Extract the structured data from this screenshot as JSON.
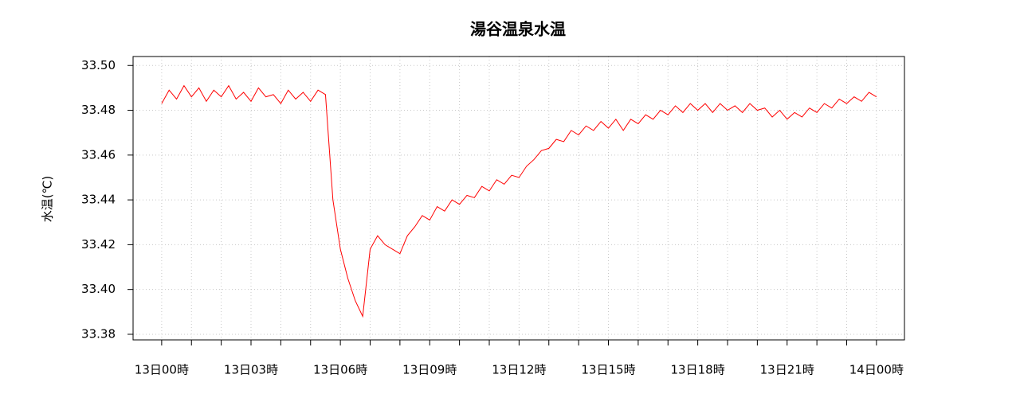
{
  "chart_data": {
    "type": "line",
    "title": "湯谷温泉水温",
    "y_label": "水温(℃)",
    "x": [
      0,
      0.25,
      0.5,
      0.75,
      1,
      1.25,
      1.5,
      1.75,
      2,
      2.25,
      2.5,
      2.75,
      3,
      3.25,
      3.5,
      3.75,
      4,
      4.25,
      4.5,
      4.75,
      5,
      5.25,
      5.5,
      5.75,
      6,
      6.25,
      6.5,
      6.75,
      7,
      7.25,
      7.5,
      7.75,
      8,
      8.25,
      8.5,
      8.75,
      9,
      9.25,
      9.5,
      9.75,
      10,
      10.25,
      10.5,
      10.75,
      11,
      11.25,
      11.5,
      11.75,
      12,
      12.25,
      12.5,
      12.75,
      13,
      13.25,
      13.5,
      13.75,
      14,
      14.25,
      14.5,
      14.75,
      15,
      15.25,
      15.5,
      15.75,
      16,
      16.25,
      16.5,
      16.75,
      17,
      17.25,
      17.5,
      17.75,
      18,
      18.25,
      18.5,
      18.75,
      19,
      19.25,
      19.5,
      19.75,
      20,
      20.25,
      20.5,
      20.75,
      21,
      21.25,
      21.5,
      21.75,
      22,
      22.25,
      22.5,
      22.75,
      23,
      23.25,
      23.5,
      23.75,
      24
    ],
    "series": [
      {
        "name": "水温",
        "color": "#ff0000",
        "values": [
          33.483,
          33.489,
          33.485,
          33.491,
          33.486,
          33.49,
          33.484,
          33.489,
          33.486,
          33.491,
          33.485,
          33.488,
          33.484,
          33.49,
          33.486,
          33.487,
          33.483,
          33.489,
          33.485,
          33.488,
          33.484,
          33.489,
          33.487,
          33.44,
          33.418,
          33.405,
          33.395,
          33.388,
          33.418,
          33.424,
          33.42,
          33.418,
          33.416,
          33.424,
          33.428,
          33.433,
          33.431,
          33.437,
          33.435,
          33.44,
          33.438,
          33.442,
          33.441,
          33.446,
          33.444,
          33.449,
          33.447,
          33.451,
          33.45,
          33.455,
          33.458,
          33.462,
          33.463,
          33.467,
          33.466,
          33.471,
          33.469,
          33.473,
          33.471,
          33.475,
          33.472,
          33.476,
          33.471,
          33.476,
          33.474,
          33.478,
          33.476,
          33.48,
          33.478,
          33.482,
          33.479,
          33.483,
          33.48,
          33.483,
          33.479,
          33.483,
          33.48,
          33.482,
          33.479,
          33.483,
          33.48,
          33.481,
          33.477,
          33.48,
          33.476,
          33.479,
          33.477,
          33.481,
          33.479,
          33.483,
          33.481,
          33.485,
          33.483,
          33.486,
          33.484,
          33.488,
          33.486
        ]
      }
    ],
    "xlim": [
      -0.96,
      24.94
    ],
    "xticks": [
      {
        "value": 0,
        "label": "13日00時"
      },
      {
        "value": 3,
        "label": "13日03時"
      },
      {
        "value": 6,
        "label": "13日06時"
      },
      {
        "value": 9,
        "label": "13日09時"
      },
      {
        "value": 12,
        "label": "13日12時"
      },
      {
        "value": 15,
        "label": "13日15時"
      },
      {
        "value": 18,
        "label": "13日18時"
      },
      {
        "value": 21,
        "label": "13日21時"
      },
      {
        "value": 24,
        "label": "14日00時"
      }
    ],
    "xminorticks": [
      1,
      2,
      4,
      5,
      7,
      8,
      10,
      11,
      13,
      14,
      16,
      17,
      19,
      20,
      22,
      23
    ],
    "ylim": [
      33.3775,
      33.504
    ],
    "yticks": [
      {
        "value": 33.38,
        "label": "33.38"
      },
      {
        "value": 33.4,
        "label": "33.40"
      },
      33.42,
      33.44,
      33.46,
      33.48,
      {
        "value": 33.5,
        "label": "33.50"
      }
    ],
    "grid": true
  }
}
